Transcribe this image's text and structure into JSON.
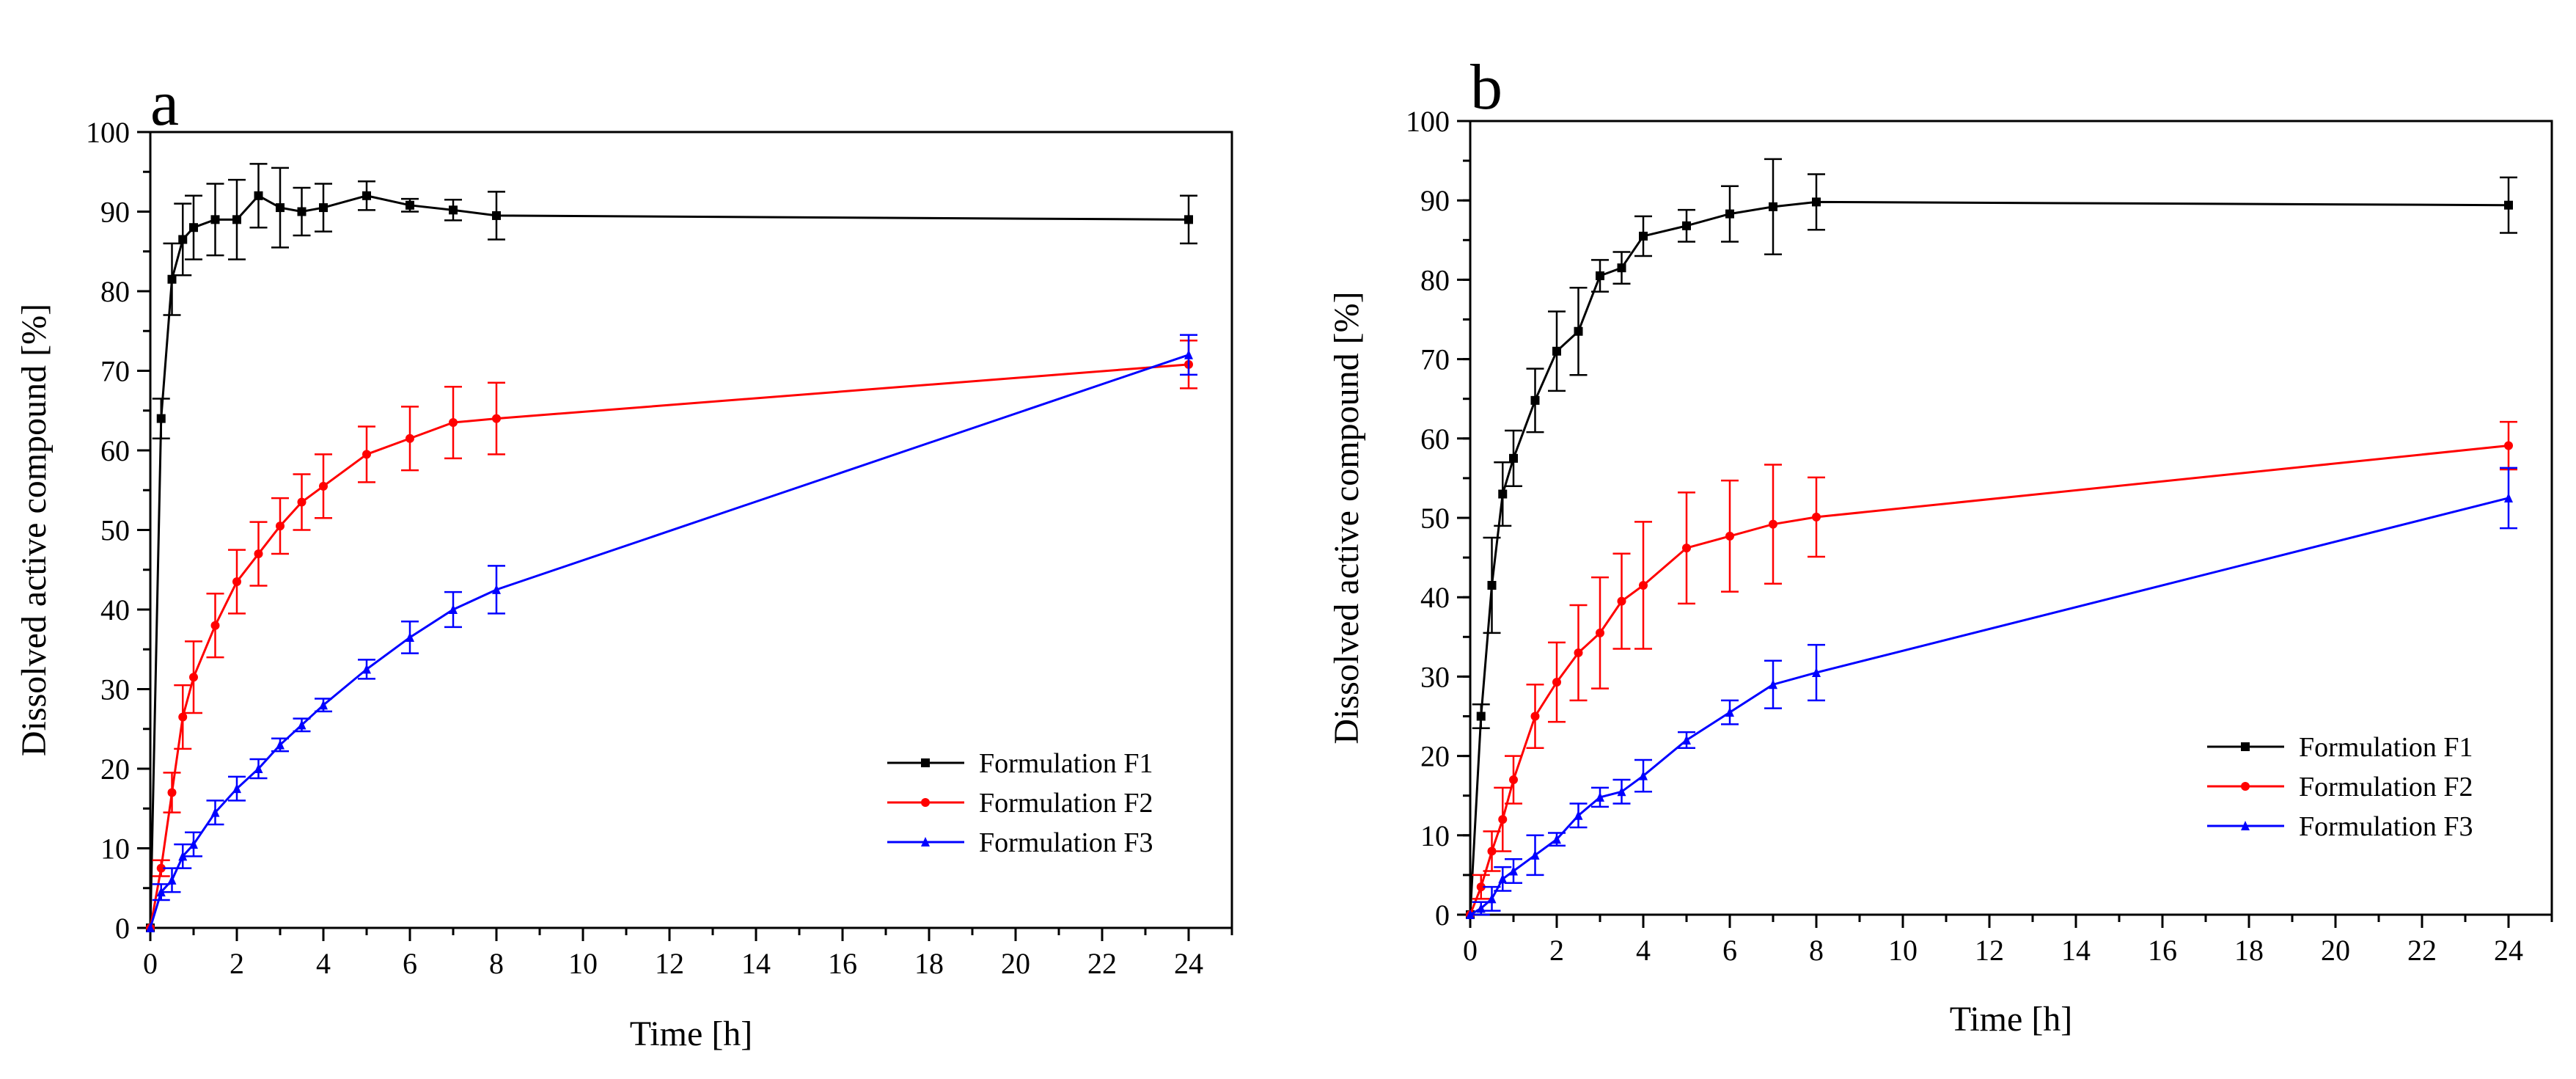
{
  "figure": {
    "legend_entries": [
      "Formulation F1",
      "Formulation F2",
      "Formulation F3"
    ],
    "series_colors": {
      "Formulation F1": "#000000",
      "Formulation F2": "#ff0000",
      "Formulation F3": "#0000ff"
    }
  },
  "chart_data": [
    {
      "type": "line",
      "panel_label": "a",
      "title": "",
      "xlabel": "Time [h]",
      "ylabel": "Dissolved active compound [%]",
      "xlim": [
        0,
        25
      ],
      "ylim": [
        0,
        100
      ],
      "xticks": [
        0,
        2,
        4,
        6,
        8,
        10,
        12,
        14,
        16,
        18,
        20,
        22,
        24
      ],
      "yticks": [
        0,
        10,
        20,
        30,
        40,
        50,
        60,
        70,
        80,
        90,
        100
      ],
      "x_minor_step": 1,
      "y_minor_step": 5,
      "legend_position": "bottom-right",
      "series": [
        {
          "name": "Formulation F1",
          "color": "#000000",
          "marker": "square",
          "x": [
            0,
            0.25,
            0.5,
            0.75,
            1,
            1.5,
            2,
            2.5,
            3,
            3.5,
            4,
            5,
            6,
            7,
            8,
            24
          ],
          "y": [
            0,
            64,
            81.5,
            86.5,
            88,
            89,
            89,
            92,
            90.5,
            90,
            90.5,
            92,
            90.8,
            90.2,
            89.5,
            89
          ],
          "err": [
            0,
            2.5,
            4.5,
            4.5,
            4,
            4.5,
            5,
            4,
            5,
            3,
            3,
            1.8,
            0.8,
            1.3,
            3,
            3
          ]
        },
        {
          "name": "Formulation F2",
          "color": "#ff0000",
          "marker": "circle",
          "x": [
            0,
            0.25,
            0.5,
            0.75,
            1,
            1.5,
            2,
            2.5,
            3,
            3.5,
            4,
            5,
            6,
            7,
            8,
            24
          ],
          "y": [
            0,
            7.5,
            17,
            26.5,
            31.5,
            38,
            43.5,
            47,
            50.5,
            53.5,
            55.5,
            59.5,
            61.5,
            63.5,
            64,
            70.8
          ],
          "err": [
            0,
            1,
            2.5,
            4,
            4.5,
            4,
            4,
            4,
            3.5,
            3.5,
            4,
            3.5,
            4,
            4.5,
            4.5,
            3
          ]
        },
        {
          "name": "Formulation F3",
          "color": "#0000ff",
          "marker": "triangle",
          "x": [
            0,
            0.25,
            0.5,
            0.75,
            1,
            1.5,
            2,
            2.5,
            3,
            3.5,
            4,
            5,
            6,
            7,
            8,
            24
          ],
          "y": [
            0,
            4.5,
            6,
            9,
            10.5,
            14.5,
            17.5,
            20,
            23,
            25.5,
            28,
            32.5,
            36.5,
            40,
            42.5,
            72
          ],
          "err": [
            0,
            1,
            1.5,
            1.5,
            1.5,
            1.5,
            1.5,
            1.2,
            0.8,
            0.8,
            0.8,
            1.2,
            2,
            2.2,
            3,
            2.5
          ]
        }
      ]
    },
    {
      "type": "line",
      "panel_label": "b",
      "title": "",
      "xlabel": "Time [h]",
      "ylabel": "Dissolved active compound [%]",
      "xlim": [
        0,
        25
      ],
      "ylim": [
        0,
        100
      ],
      "xticks": [
        0,
        2,
        4,
        6,
        8,
        10,
        12,
        14,
        16,
        18,
        20,
        22,
        24
      ],
      "yticks": [
        0,
        10,
        20,
        30,
        40,
        50,
        60,
        70,
        80,
        90,
        100
      ],
      "x_minor_step": 1,
      "y_minor_step": 5,
      "legend_position": "bottom-right",
      "series": [
        {
          "name": "Formulation F1",
          "color": "#000000",
          "marker": "square",
          "x": [
            0,
            0.25,
            0.5,
            0.75,
            1,
            1.5,
            2,
            2.5,
            3,
            3.5,
            4,
            5,
            6,
            7,
            8,
            24
          ],
          "y": [
            0,
            25,
            41.5,
            53,
            57.5,
            64.8,
            71,
            73.5,
            80.5,
            81.5,
            85.5,
            86.8,
            88.3,
            89.2,
            89.8,
            89.4
          ],
          "err": [
            0,
            1.5,
            6,
            4,
            3.5,
            4,
            5,
            5.5,
            2,
            2,
            2.5,
            2,
            3.5,
            6,
            3.5,
            3.5
          ]
        },
        {
          "name": "Formulation F2",
          "color": "#ff0000",
          "marker": "circle",
          "x": [
            0,
            0.25,
            0.5,
            0.75,
            1,
            1.5,
            2,
            2.5,
            3,
            3.5,
            4,
            5,
            6,
            7,
            8,
            24
          ],
          "y": [
            0,
            3.5,
            8,
            12,
            17,
            25,
            29.3,
            33,
            35.5,
            39.5,
            41.5,
            46.2,
            47.7,
            49.2,
            50.1,
            59.1
          ],
          "err": [
            0,
            1.5,
            2.5,
            4,
            3,
            4,
            5,
            6,
            7,
            6,
            8,
            7,
            7,
            7.5,
            5,
            3
          ]
        },
        {
          "name": "Formulation F3",
          "color": "#0000ff",
          "marker": "triangle",
          "x": [
            0,
            0.25,
            0.5,
            0.75,
            1,
            1.5,
            2,
            2.5,
            3,
            3.5,
            4,
            5,
            6,
            7,
            8,
            24
          ],
          "y": [
            0,
            0.8,
            2,
            4.5,
            5.5,
            7.5,
            9.5,
            12.5,
            14.8,
            15.5,
            17.5,
            22,
            25.5,
            29,
            30.5,
            52.5
          ],
          "err": [
            0,
            0.8,
            1.5,
            1.5,
            1.5,
            2.5,
            0.8,
            1.5,
            1.2,
            1.5,
            2,
            1,
            1.5,
            3,
            3.5,
            3.8
          ]
        }
      ]
    }
  ]
}
